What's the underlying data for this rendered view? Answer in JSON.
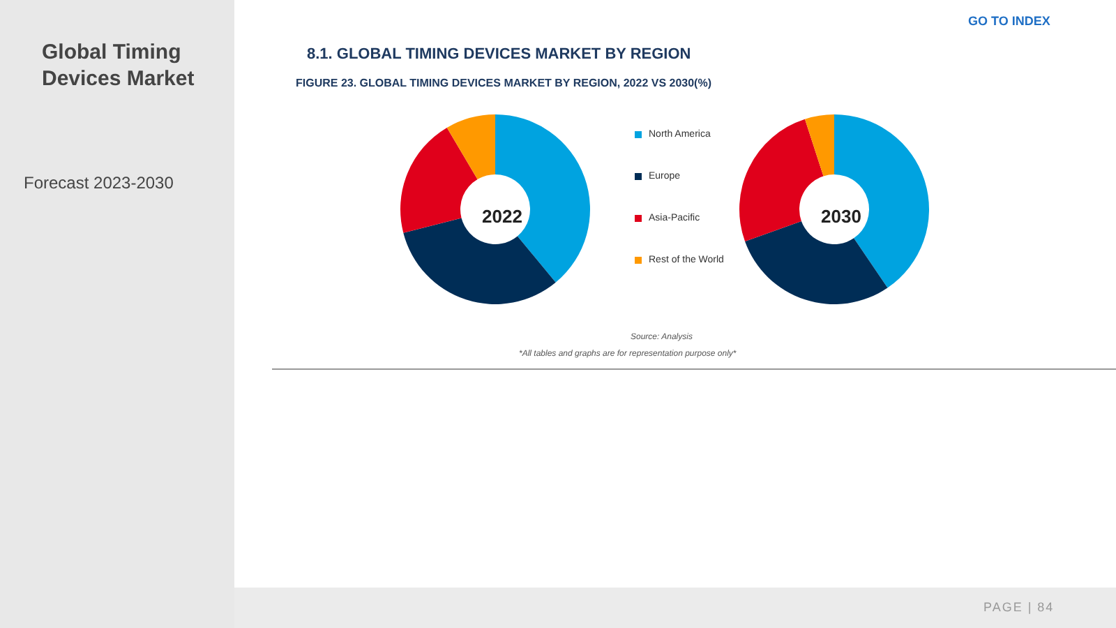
{
  "chart_data": {
    "type": "donut",
    "title": "FIGURE 23.      GLOBAL TIMING DEVICES MARKET BY REGION, 2022 VS 2030(%)",
    "categories": [
      "North America",
      "Europe",
      "Asia-Pacific",
      "Rest of the World"
    ],
    "colors": [
      "#00a3e0",
      "#002d56",
      "#e0001b",
      "#ff9900"
    ],
    "series": [
      {
        "name": "2022",
        "values": [
          39,
          32,
          20.5,
          8.5
        ]
      },
      {
        "name": "2030",
        "values": [
          40.5,
          29,
          25.5,
          5
        ]
      }
    ],
    "legend": "right",
    "annotations": [
      "Global Timing Devices Market",
      "Forecast 2023-2030",
      "GO TO INDEX",
      "8.1.    GLOBAL TIMING DEVICES MARKET BY REGION",
      "Source: Analysis",
      "*All tables and graphs are for representation purpose only*",
      "PAGE | 84"
    ]
  }
}
